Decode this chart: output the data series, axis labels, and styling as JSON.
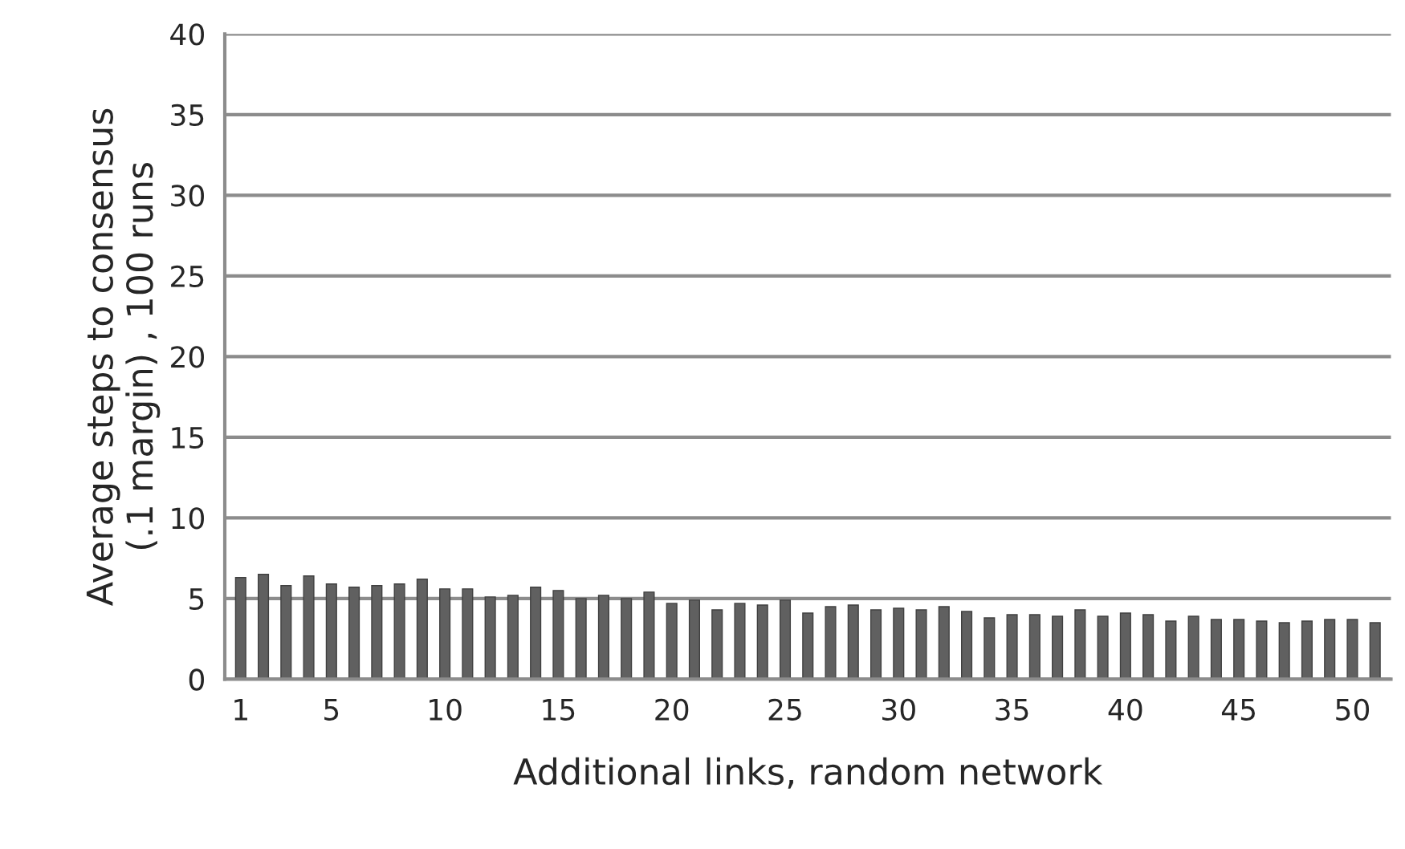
{
  "chart_data": {
    "type": "bar",
    "xlabel": "Additional links, random network",
    "ylabel": "Average steps to consensus\n(.1 margin) , 100 runs",
    "categories": [
      "1",
      null,
      null,
      null,
      "5",
      null,
      null,
      null,
      null,
      "10",
      null,
      null,
      null,
      null,
      "15",
      null,
      null,
      null,
      null,
      "20",
      null,
      null,
      null,
      null,
      "25",
      null,
      null,
      null,
      null,
      "30",
      null,
      null,
      null,
      null,
      "35",
      null,
      null,
      null,
      null,
      "40",
      null,
      null,
      null,
      null,
      "45",
      null,
      null,
      null,
      null,
      "50",
      null
    ],
    "values": [
      6.3,
      6.5,
      5.8,
      6.4,
      5.9,
      5.7,
      5.8,
      5.9,
      6.2,
      5.6,
      5.6,
      5.1,
      5.2,
      5.7,
      5.5,
      5.0,
      5.2,
      5.0,
      5.4,
      4.7,
      4.9,
      4.3,
      4.7,
      4.6,
      4.9,
      4.1,
      4.5,
      4.6,
      4.3,
      4.4,
      4.3,
      4.5,
      4.2,
      3.8,
      4.0,
      4.0,
      3.9,
      4.3,
      3.9,
      4.1,
      4.0,
      3.6,
      3.9,
      3.7,
      3.7,
      3.6,
      3.5,
      3.6,
      3.7,
      3.7,
      3.5
    ],
    "color": "#606060",
    "ylim": [
      0,
      40
    ],
    "yticks": [
      0,
      5,
      10,
      15,
      20,
      25,
      30,
      35,
      40
    ],
    "grid": "y",
    "legend": false
  }
}
